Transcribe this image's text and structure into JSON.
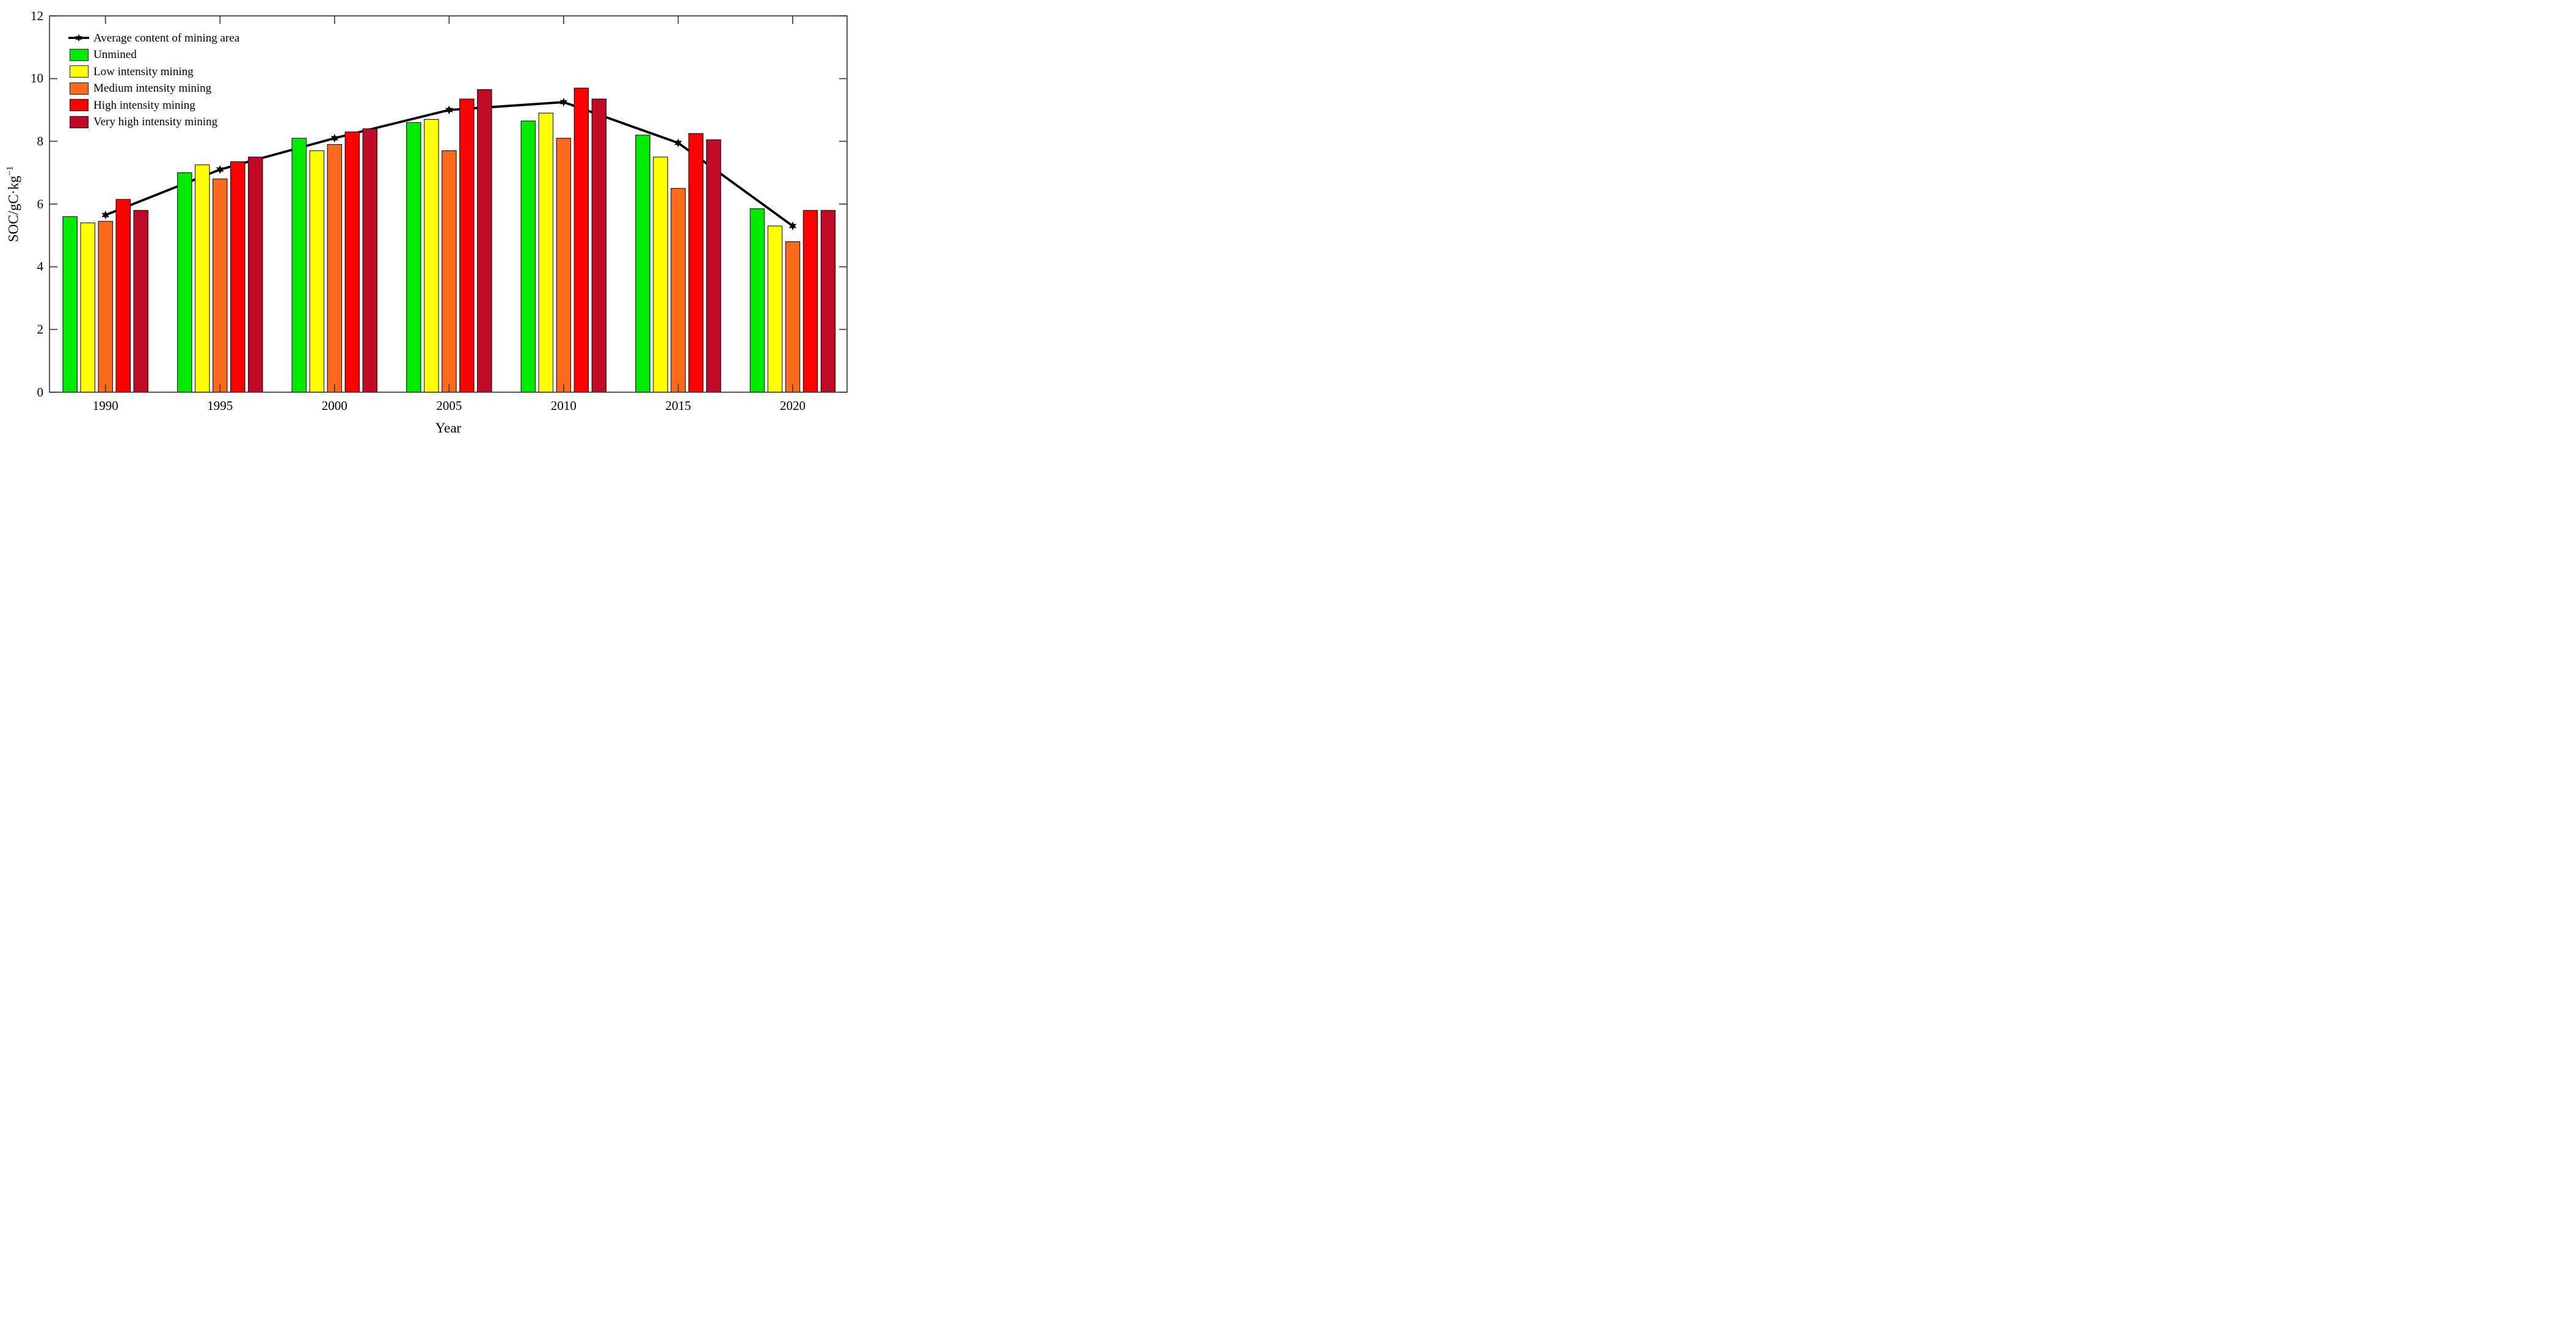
{
  "chart_data": {
    "type": "bar",
    "title": "",
    "categories": [
      "1990",
      "1995",
      "2000",
      "2005",
      "2010",
      "2015",
      "2020"
    ],
    "series": [
      {
        "name": "Unmined",
        "color": "#00EB00",
        "values": [
          5.6,
          7.0,
          8.1,
          8.6,
          8.65,
          8.2,
          5.85
        ]
      },
      {
        "name": "Low intensity mining",
        "color": "#FFFF00",
        "values": [
          5.4,
          7.25,
          7.7,
          8.7,
          8.9,
          7.5,
          5.3
        ]
      },
      {
        "name": "Medium intensity mining",
        "color": "#FB6A1A",
        "values": [
          5.45,
          6.8,
          7.9,
          7.7,
          8.1,
          6.5,
          4.8
        ]
      },
      {
        "name": "High intensity mining",
        "color": "#FF0000",
        "values": [
          6.15,
          7.35,
          8.3,
          9.35,
          9.7,
          8.25,
          5.8
        ]
      },
      {
        "name": "Very high intensity mining",
        "color": "#C10A26",
        "values": [
          5.8,
          7.5,
          8.4,
          9.65,
          9.35,
          8.05,
          5.8
        ]
      }
    ],
    "line_series": {
      "name": "Average content of mining area",
      "color": "#000000",
      "marker": "hexagram-star",
      "values": [
        5.65,
        7.1,
        8.1,
        9.0,
        9.25,
        7.95,
        5.3
      ]
    },
    "xlabel": "Year",
    "ylabel": "SOC/gC·kg",
    "ylabel_superscript": "−1",
    "ylim": [
      0,
      12
    ],
    "yticks": [
      0,
      2,
      4,
      6,
      8,
      10,
      12
    ],
    "grid": false,
    "legend_position": "top-left-inside",
    "colors": {
      "axis": "#3d3d3d",
      "bar_edge": "#000000",
      "line": "#000000"
    }
  }
}
